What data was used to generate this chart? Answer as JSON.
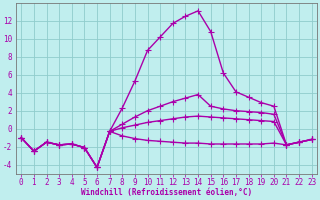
{
  "xlabel": "Windchill (Refroidissement éolien,°C)",
  "line_color": "#aa00aa",
  "bg_color": "#c0eeee",
  "grid_color": "#90cccc",
  "x_values": [
    0,
    1,
    2,
    3,
    4,
    5,
    6,
    7,
    8,
    9,
    10,
    11,
    12,
    13,
    14,
    15,
    16,
    17,
    18,
    19,
    20,
    21,
    22,
    23
  ],
  "series1": [
    -1.0,
    -2.5,
    -1.5,
    -1.8,
    -1.7,
    -2.1,
    -4.3,
    -0.3,
    2.3,
    5.3,
    8.7,
    10.2,
    11.7,
    12.5,
    13.1,
    10.8,
    6.2,
    4.1,
    3.5,
    2.9,
    2.5,
    -1.8,
    -1.5,
    -1.2
  ],
  "series2": [
    -1.0,
    -2.5,
    -1.5,
    -1.8,
    -1.7,
    -2.1,
    -4.3,
    -0.3,
    -0.8,
    -1.1,
    -1.3,
    -1.4,
    -1.5,
    -1.6,
    -1.6,
    -1.7,
    -1.7,
    -1.7,
    -1.7,
    -1.7,
    -1.6,
    -1.8,
    -1.5,
    -1.2
  ],
  "series3": [
    -1.0,
    -2.5,
    -1.5,
    -1.8,
    -1.7,
    -2.1,
    -4.3,
    -0.3,
    0.1,
    0.4,
    0.7,
    0.9,
    1.1,
    1.3,
    1.4,
    1.3,
    1.2,
    1.1,
    1.0,
    0.9,
    0.8,
    -1.8,
    -1.5,
    -1.2
  ],
  "series4": [
    -1.0,
    -2.5,
    -1.5,
    -1.8,
    -1.7,
    -2.1,
    -4.3,
    -0.3,
    0.5,
    1.3,
    2.0,
    2.5,
    3.0,
    3.4,
    3.8,
    2.5,
    2.2,
    2.0,
    1.9,
    1.8,
    1.6,
    -1.8,
    -1.5,
    -1.2
  ],
  "ylim_min": -5,
  "ylim_max": 14,
  "xlim_min": -0.4,
  "xlim_max": 23.4,
  "yticks": [
    -4,
    -2,
    0,
    2,
    4,
    6,
    8,
    10,
    12
  ],
  "xticks": [
    0,
    1,
    2,
    3,
    4,
    5,
    6,
    7,
    8,
    9,
    10,
    11,
    12,
    13,
    14,
    15,
    16,
    17,
    18,
    19,
    20,
    21,
    22,
    23
  ],
  "spine_color": "#777777",
  "tick_fontsize": 5.5,
  "xlabel_fontsize": 5.5,
  "linewidth": 1.0,
  "markersize": 4,
  "markeredgewidth": 0.8
}
